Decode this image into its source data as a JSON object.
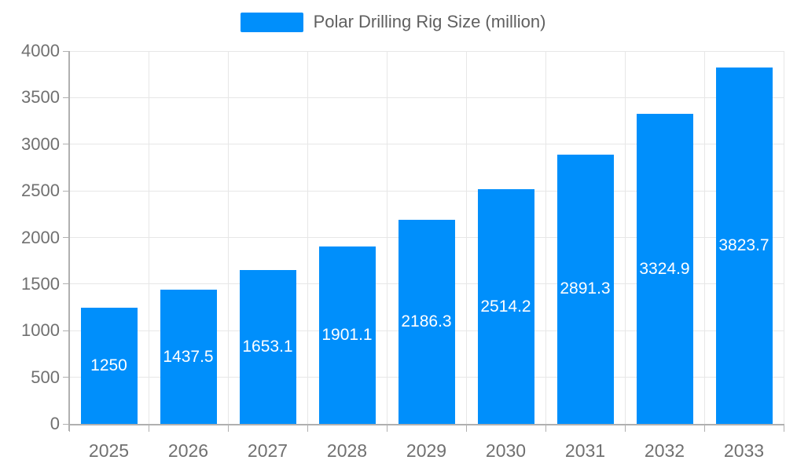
{
  "legend": {
    "label": "Polar Drilling Rig Size (million)"
  },
  "colors": {
    "bar": "#008FFB",
    "grid": "#e7e7e7",
    "axis-line": "#b0b0b0",
    "tick": "#b0b0b0",
    "axis-label": "#707070",
    "legend-label": "#5f5f5f",
    "data-label": "#ffffff",
    "background": "#ffffff"
  },
  "chart_data": {
    "type": "bar",
    "title": "Polar Drilling Rig Size (million)",
    "series_name": "Polar Drilling Rig Size (million)",
    "categories": [
      "2025",
      "2026",
      "2027",
      "2028",
      "2029",
      "2030",
      "2031",
      "2032",
      "2033"
    ],
    "values": [
      1250,
      1437.5,
      1653.1,
      1901.1,
      2186.3,
      2514.2,
      2891.3,
      3324.9,
      3823.7
    ],
    "value_labels": [
      "1250",
      "1437.5",
      "1653.1",
      "1901.1",
      "2186.3",
      "2514.2",
      "2891.3",
      "3324.9",
      "3823.7"
    ],
    "xlabel": "",
    "ylabel": "",
    "ylim": [
      0,
      4000
    ],
    "ytick_step": 500,
    "ytick_labels": [
      "0",
      "500",
      "1000",
      "1500",
      "2000",
      "2500",
      "3000",
      "3500",
      "4000"
    ],
    "grid": true,
    "legend_position": "top",
    "data_labels": "inside-center"
  }
}
